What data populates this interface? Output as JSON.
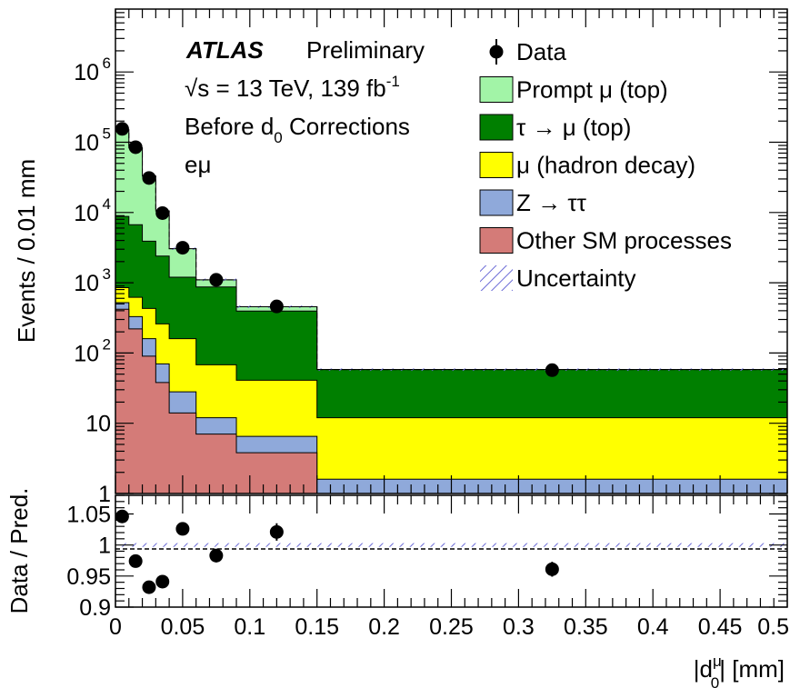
{
  "chart_data": [
    {
      "type": "stacked-histogram",
      "ylabel": "Events / 0.01 mm",
      "yscale": "log",
      "ylim": [
        1,
        10000000
      ],
      "xlim": [
        0,
        0.5
      ],
      "y_tick_labels": [
        "1",
        "10",
        "10",
        "10",
        "10",
        "10",
        "10"
      ],
      "y_tick_exponents": [
        "",
        "",
        "2",
        "3",
        "4",
        "5",
        "6"
      ],
      "annotation": {
        "experiment": "ATLAS",
        "status": "Preliminary",
        "energy_root": "√",
        "energy": "s = 13 TeV, 139 fb",
        "energy_sup": "-1",
        "correction_pre": "Before d",
        "correction_sub": "0",
        "correction_post": " Corrections",
        "channel": "eμ"
      },
      "bin_edges": [
        0,
        0.01,
        0.02,
        0.03,
        0.04,
        0.06,
        0.09,
        0.15,
        0.5
      ],
      "series": [
        {
          "name": "Other SM processes",
          "color": "#d47b78",
          "values": [
            420,
            220,
            90,
            38,
            14,
            7,
            3.8,
            1
          ]
        },
        {
          "name": "Z → ττ",
          "color": "#8fa9da",
          "values": [
            520,
            330,
            160,
            70,
            28,
            12,
            6.5,
            1.6
          ]
        },
        {
          "name": "μ (hadron decay)",
          "color": "#ffff00",
          "values": [
            850,
            620,
            430,
            260,
            160,
            68,
            41,
            12
          ]
        },
        {
          "name": "τ → μ (top)",
          "color": "#007f00",
          "values": [
            8800,
            6700,
            3900,
            2400,
            1200,
            870,
            395,
            58
          ]
        },
        {
          "name": "Prompt μ (top)",
          "color": "#a2f4a7",
          "values": [
            150000,
            83000,
            33000,
            10500,
            3050,
            1100,
            455,
            58
          ]
        }
      ],
      "data": {
        "name": "Data",
        "x": [
          0.005,
          0.015,
          0.025,
          0.035,
          0.05,
          0.075,
          0.12,
          0.325
        ],
        "y": [
          155000,
          85000,
          31000,
          9800,
          3150,
          1100,
          460,
          57
        ]
      },
      "legend": [
        {
          "label": "Data",
          "kind": "marker"
        },
        {
          "label": "Prompt μ (top)",
          "kind": "box",
          "color": "#a2f4a7"
        },
        {
          "label": "τ → μ (top)",
          "kind": "box",
          "color": "#007f00"
        },
        {
          "label": "μ (hadron decay)",
          "kind": "box",
          "color": "#ffff00"
        },
        {
          "label": "Z → ττ",
          "kind": "box",
          "color": "#8fa9da"
        },
        {
          "label": "Other SM processes",
          "kind": "box",
          "color": "#d47b78"
        },
        {
          "label": "Uncertainty",
          "kind": "hatch",
          "color": "#6b6bd6"
        }
      ]
    },
    {
      "type": "scatter",
      "ylabel": "Data / Pred.",
      "xlabel_pre": "|d",
      "xlabel_sup": "μ",
      "xlabel_sub": "0",
      "xlabel_post": "| [mm]",
      "xlim": [
        0,
        0.5
      ],
      "ylim": [
        0.9,
        1.08
      ],
      "x_ticks": [
        0,
        0.05,
        0.1,
        0.15,
        0.2,
        0.25,
        0.3,
        0.35,
        0.4,
        0.45,
        0.5
      ],
      "x_tick_labels": [
        "0",
        "0.05",
        "0.1",
        "0.15",
        "0.2",
        "0.25",
        "0.3",
        "0.35",
        "0.4",
        "0.45",
        "0.5"
      ],
      "y_ticks": [
        0.9,
        0.95,
        1,
        1.05
      ],
      "y_tick_labels": [
        "0.9",
        "0.95",
        "1",
        "1.05"
      ],
      "x": [
        0.005,
        0.015,
        0.025,
        0.035,
        0.05,
        0.075,
        0.12,
        0.325
      ],
      "y": [
        1.046,
        0.974,
        0.932,
        0.941,
        1.026,
        0.983,
        1.021,
        0.961
      ],
      "yerr": [
        0.003,
        0.004,
        0.006,
        0.008,
        0.006,
        0.011,
        0.014,
        0.012
      ]
    }
  ]
}
